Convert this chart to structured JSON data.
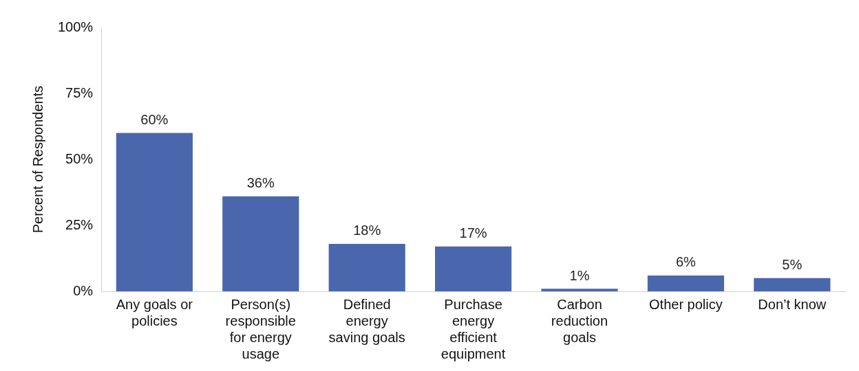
{
  "chart_data": {
    "type": "bar",
    "ylabel": "Percent of Respondents",
    "categories": [
      "Any goals or policies",
      "Person(s) responsible for energy usage",
      "Defined energy saving goals",
      "Purchase energy efficient equipment",
      "Carbon reduction goals",
      "Other policy",
      "Don’t know"
    ],
    "values": [
      60,
      36,
      18,
      17,
      1,
      6,
      5
    ],
    "value_labels": [
      "60%",
      "36%",
      "18%",
      "17%",
      "1%",
      "6%",
      "5%"
    ],
    "color": "#4a67ad",
    "ylim": [
      0,
      100
    ],
    "yticks": [
      {
        "value": 0,
        "label": "0%"
      },
      {
        "value": 25,
        "label": "25%"
      },
      {
        "value": 50,
        "label": "50%"
      },
      {
        "value": 75,
        "label": "75%"
      },
      {
        "value": 100,
        "label": "100%"
      }
    ],
    "grid": false,
    "legend": false
  }
}
